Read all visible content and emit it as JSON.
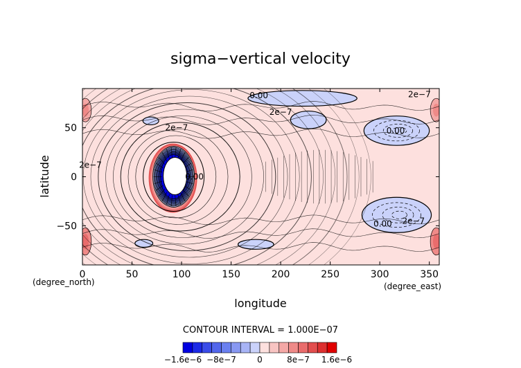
{
  "chart_data": {
    "type": "contour",
    "title": "sigma−vertical velocity",
    "xlabel": "longitude",
    "ylabel": "latitude",
    "x_unit": "(degree_east)",
    "y_unit": "(degree_north)",
    "xlim": [
      0,
      360
    ],
    "ylim": [
      -90,
      90
    ],
    "xticks": [
      0,
      50,
      100,
      150,
      200,
      250,
      300,
      350
    ],
    "yticks": [
      -50,
      0,
      50
    ],
    "xtick_labels": [
      "0",
      "50",
      "100",
      "150",
      "200",
      "250",
      "300",
      "350"
    ],
    "ytick_labels": [
      "−50",
      "0",
      "50"
    ],
    "contour_interval_text": "CONTOUR INTERVAL = 1.000E−07",
    "contour_labels": [
      {
        "text": "0.00",
        "lon": 178,
        "lat": 83
      },
      {
        "text": "2e−7",
        "lon": 340,
        "lat": 84
      },
      {
        "text": "2e−7",
        "lon": 200,
        "lat": 66
      },
      {
        "text": "2e−7",
        "lon": 95,
        "lat": 50
      },
      {
        "text": "0.00",
        "lon": 316,
        "lat": 47
      },
      {
        "text": "2e−7",
        "lon": 8,
        "lat": 12
      },
      {
        "text": "0.00",
        "lon": 113,
        "lat": 0
      },
      {
        "text": "0.00",
        "lon": 303,
        "lat": -48
      },
      {
        "text": "2e−7",
        "lon": 334,
        "lat": -45
      }
    ],
    "colorbar": {
      "levels": [
        -1.6e-06,
        -1.4e-06,
        -1.2e-06,
        -1e-06,
        -8e-07,
        -6e-07,
        -4e-07,
        -2e-07,
        0,
        2e-07,
        4e-07,
        6e-07,
        8e-07,
        1e-06,
        1.2e-06,
        1.4e-06,
        1.6e-06
      ],
      "colors": [
        "#0000e0",
        "#1c2ae6",
        "#3a4ce8",
        "#5266ec",
        "#6a80f0",
        "#8898f2",
        "#a8b4f6",
        "#cad2fa",
        "#fde0de",
        "#f8c4c2",
        "#f4a8a6",
        "#ef8a88",
        "#e96c6c",
        "#e24e4e",
        "#dd3030",
        "#e00000"
      ],
      "tick_labels": [
        "−1.6e−6",
        "−8e−7",
        "0",
        "8e−7",
        "1.6e−6"
      ],
      "tick_values": [
        -1.6e-06,
        -8e-07,
        0,
        8e-07,
        1.6e-06
      ]
    },
    "features": {
      "background_value": 1e-07,
      "strong_dipole": {
        "lon": 92,
        "lat": 0,
        "min": -1.6e-06,
        "max": 1e-06
      },
      "negative_regions": [
        {
          "lon": 222,
          "lat": 80,
          "dlon": 55,
          "dlat": 8,
          "value": -1e-07
        },
        {
          "lon": 228,
          "lat": 58,
          "dlon": 18,
          "dlat": 9,
          "value": -1e-07
        },
        {
          "lon": 317,
          "lat": 47,
          "dlon": 33,
          "dlat": 15,
          "value": -4e-07
        },
        {
          "lon": 317,
          "lat": -39,
          "dlon": 35,
          "dlat": 18,
          "value": -4e-07
        },
        {
          "lon": 69,
          "lat": 57,
          "dlon": 8,
          "dlat": 4,
          "value": -1e-07
        },
        {
          "lon": 62,
          "lat": -68,
          "dlon": 9,
          "dlat": 4,
          "value": -1e-07
        },
        {
          "lon": 175,
          "lat": -69,
          "dlon": 18,
          "dlat": 5,
          "value": -1e-07
        }
      ],
      "positive_regions": [
        {
          "lon": 3,
          "lat": 68,
          "dlon": 6,
          "dlat": 12,
          "value": 5e-07
        },
        {
          "lon": 357,
          "lat": 68,
          "dlon": 6,
          "dlat": 12,
          "value": 5e-07
        },
        {
          "lon": 3,
          "lat": -66,
          "dlon": 6,
          "dlat": 14,
          "value": 6e-07
        },
        {
          "lon": 357,
          "lat": -66,
          "dlon": 6,
          "dlat": 14,
          "value": 6e-07
        }
      ]
    }
  }
}
